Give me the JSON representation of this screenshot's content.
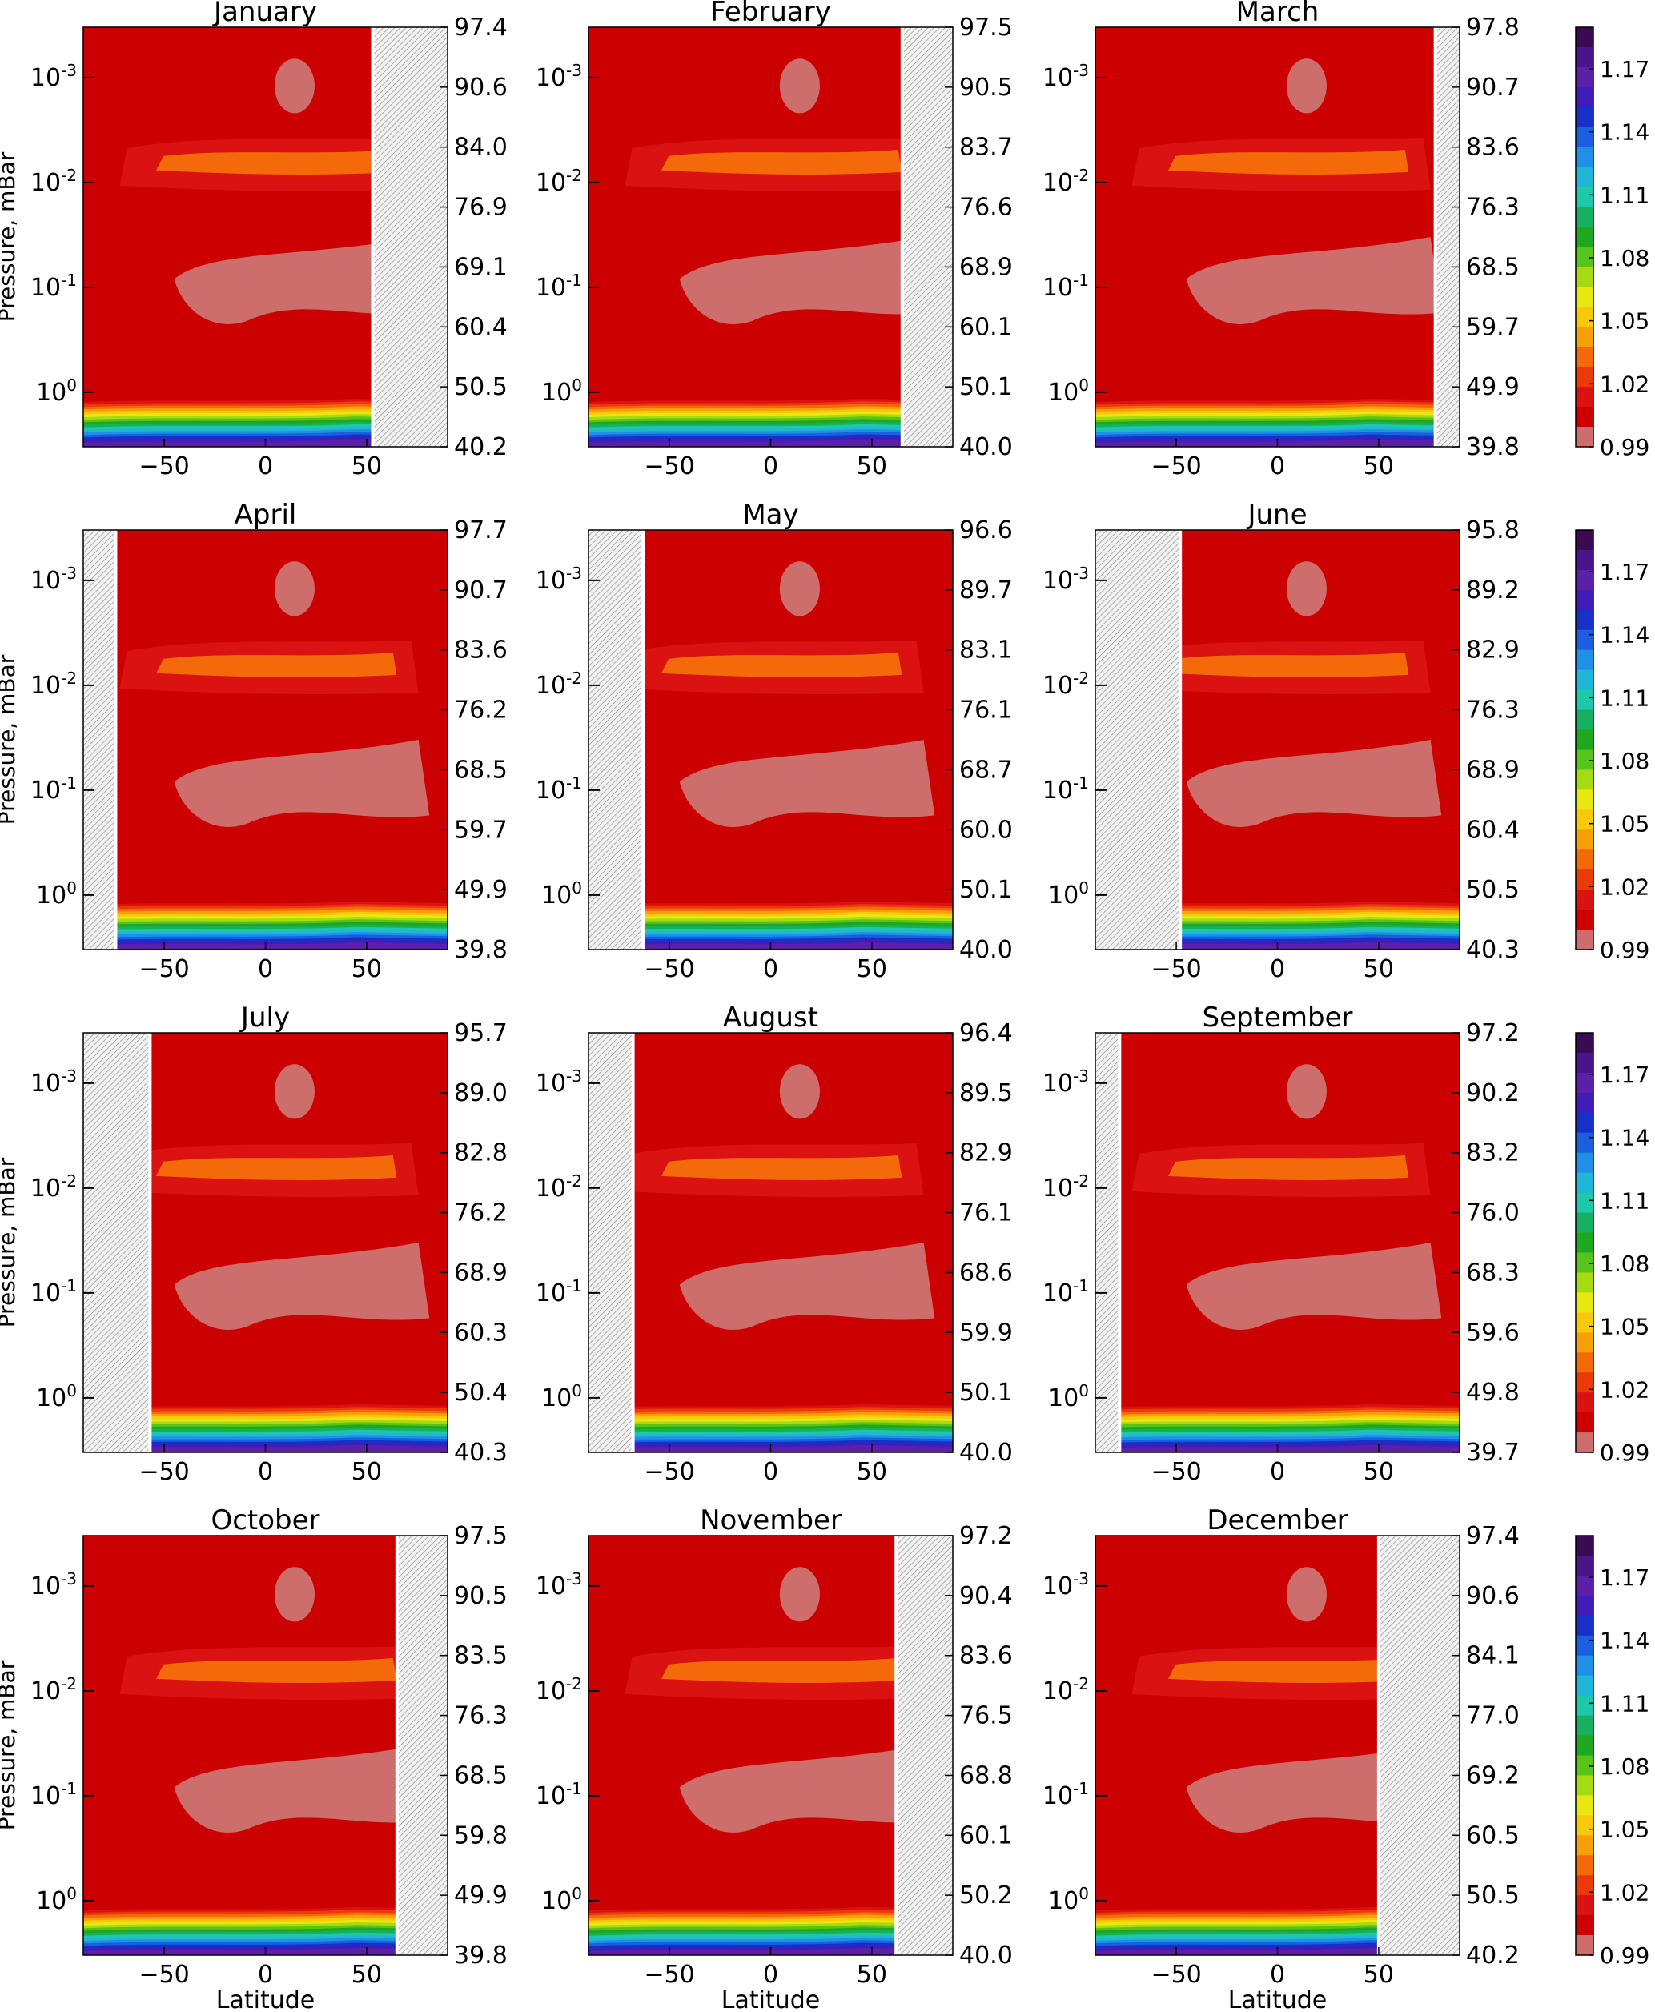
{
  "figure": {
    "shared": {
      "ylabel": "Pressure, mBar",
      "xlabel": "Latitude",
      "x_ticks": [
        "−50",
        "0",
        "50"
      ],
      "y_ticks": [
        {
          "base": "10",
          "exp": "-3"
        },
        {
          "base": "10",
          "exp": "-2"
        },
        {
          "base": "10",
          "exp": "-1"
        },
        {
          "base": "10",
          "exp": "0"
        }
      ]
    },
    "colorbar": {
      "ticks": [
        "1.17",
        "1.14",
        "1.11",
        "1.08",
        "1.05",
        "1.02",
        "0.99"
      ],
      "levels": [
        "#3a0b52",
        "#4a148c",
        "#5b1fa8",
        "#3f1db8",
        "#1730c8",
        "#1b5fe0",
        "#1f8fe8",
        "#20b6d8",
        "#1ec8a8",
        "#16b060",
        "#1fa81f",
        "#56c41a",
        "#a6da12",
        "#e8e810",
        "#f7c90a",
        "#f8a00a",
        "#f46a0a",
        "#ea3a08",
        "#db1212",
        "#cc0000",
        "#ce6e6c"
      ]
    }
  },
  "chart_data": [
    {
      "type": "contour",
      "title": "January",
      "xlabel": "Latitude",
      "ylabel": "Pressure, mBar",
      "xlim": [
        -90,
        90
      ],
      "colorbar_range": [
        0.99,
        1.17
      ],
      "right_axis_ticks": [
        "97.4",
        "90.6",
        "84.0",
        "76.9",
        "69.1",
        "60.4",
        "50.5",
        "40.2"
      ],
      "hatched_region": [
        53,
        90
      ]
    },
    {
      "type": "contour",
      "title": "February",
      "xlabel": "Latitude",
      "ylabel": "Pressure, mBar",
      "xlim": [
        -90,
        90
      ],
      "colorbar_range": [
        0.99,
        1.17
      ],
      "right_axis_ticks": [
        "97.5",
        "90.5",
        "83.7",
        "76.6",
        "68.9",
        "60.1",
        "50.1",
        "40.0"
      ],
      "hatched_region": [
        65,
        90
      ]
    },
    {
      "type": "contour",
      "title": "March",
      "xlabel": "Latitude",
      "ylabel": "Pressure, mBar",
      "xlim": [
        -90,
        90
      ],
      "colorbar_range": [
        0.99,
        1.17
      ],
      "right_axis_ticks": [
        "97.8",
        "90.7",
        "83.6",
        "76.3",
        "68.5",
        "59.7",
        "49.9",
        "39.8"
      ],
      "hatched_region": [
        78,
        90
      ]
    },
    {
      "type": "contour",
      "title": "April",
      "xlabel": "Latitude",
      "ylabel": "Pressure, mBar",
      "xlim": [
        -90,
        90
      ],
      "colorbar_range": [
        0.99,
        1.17
      ],
      "right_axis_ticks": [
        "97.7",
        "90.7",
        "83.6",
        "76.2",
        "68.5",
        "59.7",
        "49.9",
        "39.8"
      ],
      "hatched_region": [
        -90,
        -74
      ]
    },
    {
      "type": "contour",
      "title": "May",
      "xlabel": "Latitude",
      "ylabel": "Pressure, mBar",
      "xlim": [
        -90,
        90
      ],
      "colorbar_range": [
        0.99,
        1.17
      ],
      "right_axis_ticks": [
        "96.6",
        "89.7",
        "83.1",
        "76.1",
        "68.7",
        "60.0",
        "50.1",
        "40.0"
      ],
      "hatched_region": [
        -90,
        -63
      ]
    },
    {
      "type": "contour",
      "title": "June",
      "xlabel": "Latitude",
      "ylabel": "Pressure, mBar",
      "xlim": [
        -90,
        90
      ],
      "colorbar_range": [
        0.99,
        1.17
      ],
      "right_axis_ticks": [
        "95.8",
        "89.2",
        "82.9",
        "76.3",
        "68.9",
        "60.4",
        "50.5",
        "40.3"
      ],
      "hatched_region": [
        -90,
        -48
      ]
    },
    {
      "type": "contour",
      "title": "July",
      "xlabel": "Latitude",
      "ylabel": "Pressure, mBar",
      "xlim": [
        -90,
        90
      ],
      "colorbar_range": [
        0.99,
        1.17
      ],
      "right_axis_ticks": [
        "95.7",
        "89.0",
        "82.8",
        "76.2",
        "68.9",
        "60.3",
        "50.4",
        "40.3"
      ],
      "hatched_region": [
        -90,
        -57
      ]
    },
    {
      "type": "contour",
      "title": "August",
      "xlabel": "Latitude",
      "ylabel": "Pressure, mBar",
      "xlim": [
        -90,
        90
      ],
      "colorbar_range": [
        0.99,
        1.17
      ],
      "right_axis_ticks": [
        "96.4",
        "89.5",
        "82.9",
        "76.1",
        "68.6",
        "59.9",
        "50.1",
        "40.0"
      ],
      "hatched_region": [
        -90,
        -68
      ]
    },
    {
      "type": "contour",
      "title": "September",
      "xlabel": "Latitude",
      "ylabel": "Pressure, mBar",
      "xlim": [
        -90,
        90
      ],
      "colorbar_range": [
        0.99,
        1.17
      ],
      "right_axis_ticks": [
        "97.2",
        "90.2",
        "83.2",
        "76.0",
        "68.3",
        "59.6",
        "49.8",
        "39.7"
      ],
      "hatched_region": [
        -90,
        -78
      ]
    },
    {
      "type": "contour",
      "title": "October",
      "xlabel": "Latitude",
      "ylabel": "Pressure, mBar",
      "xlim": [
        -90,
        90
      ],
      "colorbar_range": [
        0.99,
        1.17
      ],
      "right_axis_ticks": [
        "97.5",
        "90.5",
        "83.5",
        "76.3",
        "68.5",
        "59.8",
        "49.9",
        "39.8"
      ],
      "hatched_region": [
        65,
        90
      ]
    },
    {
      "type": "contour",
      "title": "November",
      "xlabel": "Latitude",
      "ylabel": "Pressure, mBar",
      "xlim": [
        -90,
        90
      ],
      "colorbar_range": [
        0.99,
        1.17
      ],
      "right_axis_ticks": [
        "97.2",
        "90.4",
        "83.6",
        "76.5",
        "68.8",
        "60.1",
        "50.2",
        "40.0"
      ],
      "hatched_region": [
        62,
        90
      ]
    },
    {
      "type": "contour",
      "title": "December",
      "xlabel": "Latitude",
      "ylabel": "Pressure, mBar",
      "xlim": [
        -90,
        90
      ],
      "colorbar_range": [
        0.99,
        1.17
      ],
      "right_axis_ticks": [
        "97.4",
        "90.6",
        "84.1",
        "77.0",
        "69.2",
        "60.5",
        "50.5",
        "40.2"
      ],
      "hatched_region": [
        50,
        90
      ]
    }
  ]
}
